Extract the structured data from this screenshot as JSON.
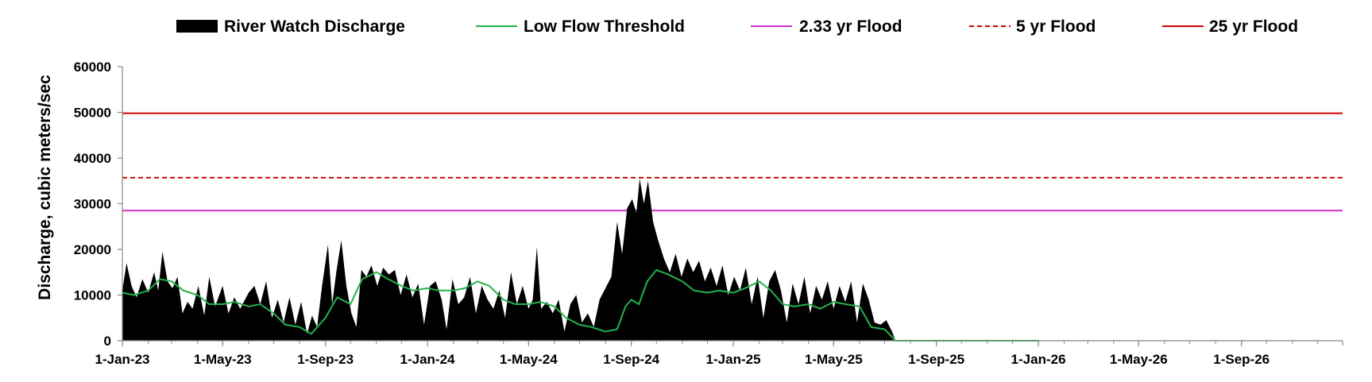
{
  "chart_data": {
    "type": "area",
    "ylabel": "Discharge, cubic meters/sec",
    "ylim": [
      0,
      60000
    ],
    "y_ticks": [
      "0",
      "10000",
      "20000",
      "30000",
      "40000",
      "50000",
      "60000"
    ],
    "x_range": [
      "2023-01-01",
      "2026-12-31"
    ],
    "x_ticks": [
      {
        "date": "2023-01-01",
        "label": "1-Jan-23"
      },
      {
        "date": "2023-05-01",
        "label": "1-May-23"
      },
      {
        "date": "2023-09-01",
        "label": "1-Sep-23"
      },
      {
        "date": "2024-01-01",
        "label": "1-Jan-24"
      },
      {
        "date": "2024-05-01",
        "label": "1-May-24"
      },
      {
        "date": "2024-09-01",
        "label": "1-Sep-24"
      },
      {
        "date": "2025-01-01",
        "label": "1-Jan-25"
      },
      {
        "date": "2025-05-01",
        "label": "1-May-25"
      },
      {
        "date": "2025-09-01",
        "label": "1-Sep-25"
      },
      {
        "date": "2026-01-01",
        "label": "1-Jan-26"
      },
      {
        "date": "2026-05-01",
        "label": "1-May-26"
      },
      {
        "date": "2026-09-01",
        "label": "1-Sep-26"
      }
    ],
    "legend_position": "top",
    "legend": [
      {
        "label": "River Watch Discharge",
        "style": "area",
        "color": "#000000"
      },
      {
        "label": "Low Flow Threshold",
        "style": "line",
        "color": "#22b14c"
      },
      {
        "label": "2.33 yr Flood",
        "style": "line",
        "color": "#cc33cc"
      },
      {
        "label": "5 yr Flood",
        "style": "dashed",
        "color": "#cc0000"
      },
      {
        "label": "25 yr Flood",
        "style": "line",
        "color": "#cc0000"
      }
    ],
    "thresholds": [
      {
        "name": "2.33 yr Flood",
        "value": 28500,
        "color": "#cc33cc",
        "dash": false
      },
      {
        "name": "5 yr Flood",
        "value": 35700,
        "color": "#cc0000",
        "dash": true
      },
      {
        "name": "25 yr Flood",
        "value": 49800,
        "color": "#cc0000",
        "dash": false
      }
    ],
    "series": [
      {
        "name": "River Watch Discharge",
        "color": "#000000",
        "points": [
          [
            "2023-01-01",
            11000
          ],
          [
            "2023-01-06",
            17000
          ],
          [
            "2023-01-12",
            12000
          ],
          [
            "2023-01-18",
            9500
          ],
          [
            "2023-01-25",
            13500
          ],
          [
            "2023-02-01",
            10500
          ],
          [
            "2023-02-08",
            15000
          ],
          [
            "2023-02-13",
            11000
          ],
          [
            "2023-02-18",
            19500
          ],
          [
            "2023-02-24",
            13000
          ],
          [
            "2023-03-02",
            11500
          ],
          [
            "2023-03-08",
            14000
          ],
          [
            "2023-03-14",
            6000
          ],
          [
            "2023-03-20",
            8500
          ],
          [
            "2023-03-26",
            7000
          ],
          [
            "2023-04-02",
            12000
          ],
          [
            "2023-04-09",
            5500
          ],
          [
            "2023-04-15",
            14000
          ],
          [
            "2023-04-22",
            7500
          ],
          [
            "2023-05-01",
            12000
          ],
          [
            "2023-05-08",
            6000
          ],
          [
            "2023-05-15",
            9500
          ],
          [
            "2023-05-22",
            7000
          ],
          [
            "2023-06-01",
            10500
          ],
          [
            "2023-06-08",
            12000
          ],
          [
            "2023-06-15",
            8000
          ],
          [
            "2023-06-22",
            13000
          ],
          [
            "2023-06-29",
            5000
          ],
          [
            "2023-07-06",
            9000
          ],
          [
            "2023-07-13",
            4000
          ],
          [
            "2023-07-20",
            9500
          ],
          [
            "2023-07-27",
            3500
          ],
          [
            "2023-08-03",
            8500
          ],
          [
            "2023-08-10",
            1500
          ],
          [
            "2023-08-16",
            5500
          ],
          [
            "2023-08-22",
            3000
          ],
          [
            "2023-08-28",
            12000
          ],
          [
            "2023-09-04",
            21000
          ],
          [
            "2023-09-09",
            8000
          ],
          [
            "2023-09-14",
            15000
          ],
          [
            "2023-09-20",
            22000
          ],
          [
            "2023-09-26",
            12000
          ],
          [
            "2023-10-02",
            6000
          ],
          [
            "2023-10-08",
            3000
          ],
          [
            "2023-10-14",
            15500
          ],
          [
            "2023-10-20",
            14000
          ],
          [
            "2023-10-26",
            16500
          ],
          [
            "2023-11-02",
            12000
          ],
          [
            "2023-11-09",
            16000
          ],
          [
            "2023-11-16",
            14500
          ],
          [
            "2023-11-23",
            15500
          ],
          [
            "2023-11-30",
            10000
          ],
          [
            "2023-12-07",
            14500
          ],
          [
            "2023-12-14",
            9500
          ],
          [
            "2023-12-21",
            12500
          ],
          [
            "2023-12-28",
            3500
          ],
          [
            "2024-01-04",
            12000
          ],
          [
            "2024-01-11",
            13000
          ],
          [
            "2024-01-18",
            9000
          ],
          [
            "2024-01-24",
            2500
          ],
          [
            "2024-01-31",
            13500
          ],
          [
            "2024-02-07",
            8000
          ],
          [
            "2024-02-14",
            9500
          ],
          [
            "2024-02-21",
            14000
          ],
          [
            "2024-02-28",
            6000
          ],
          [
            "2024-03-06",
            12000
          ],
          [
            "2024-03-13",
            9000
          ],
          [
            "2024-03-20",
            7000
          ],
          [
            "2024-03-27",
            11000
          ],
          [
            "2024-04-03",
            5000
          ],
          [
            "2024-04-10",
            15000
          ],
          [
            "2024-04-17",
            8000
          ],
          [
            "2024-04-24",
            12000
          ],
          [
            "2024-05-01",
            7000
          ],
          [
            "2024-05-06",
            9000
          ],
          [
            "2024-05-11",
            20500
          ],
          [
            "2024-05-16",
            7000
          ],
          [
            "2024-05-23",
            8500
          ],
          [
            "2024-05-30",
            6000
          ],
          [
            "2024-06-06",
            9000
          ],
          [
            "2024-06-13",
            2000
          ],
          [
            "2024-06-20",
            8000
          ],
          [
            "2024-06-27",
            10000
          ],
          [
            "2024-07-04",
            4000
          ],
          [
            "2024-07-11",
            6000
          ],
          [
            "2024-07-18",
            3000
          ],
          [
            "2024-07-25",
            9000
          ],
          [
            "2024-08-01",
            11500
          ],
          [
            "2024-08-08",
            14000
          ],
          [
            "2024-08-15",
            26000
          ],
          [
            "2024-08-21",
            19000
          ],
          [
            "2024-08-27",
            29000
          ],
          [
            "2024-09-02",
            31000
          ],
          [
            "2024-09-07",
            28000
          ],
          [
            "2024-09-11",
            35500
          ],
          [
            "2024-09-16",
            30000
          ],
          [
            "2024-09-21",
            35000
          ],
          [
            "2024-09-27",
            26000
          ],
          [
            "2024-10-03",
            22000
          ],
          [
            "2024-10-10",
            18000
          ],
          [
            "2024-10-17",
            15000
          ],
          [
            "2024-10-24",
            19000
          ],
          [
            "2024-10-31",
            14000
          ],
          [
            "2024-11-07",
            18000
          ],
          [
            "2024-11-14",
            15000
          ],
          [
            "2024-11-21",
            17500
          ],
          [
            "2024-11-28",
            13000
          ],
          [
            "2024-12-05",
            16000
          ],
          [
            "2024-12-12",
            12000
          ],
          [
            "2024-12-19",
            16500
          ],
          [
            "2024-12-26",
            10000
          ],
          [
            "2025-01-02",
            14000
          ],
          [
            "2025-01-09",
            11000
          ],
          [
            "2025-01-16",
            16000
          ],
          [
            "2025-01-23",
            8000
          ],
          [
            "2025-01-30",
            14000
          ],
          [
            "2025-02-06",
            5000
          ],
          [
            "2025-02-13",
            13000
          ],
          [
            "2025-02-20",
            15500
          ],
          [
            "2025-02-27",
            11000
          ],
          [
            "2025-03-06",
            4000
          ],
          [
            "2025-03-13",
            12500
          ],
          [
            "2025-03-20",
            8000
          ],
          [
            "2025-03-27",
            14000
          ],
          [
            "2025-04-03",
            6000
          ],
          [
            "2025-04-10",
            12000
          ],
          [
            "2025-04-17",
            9000
          ],
          [
            "2025-04-24",
            13000
          ],
          [
            "2025-05-01",
            7000
          ],
          [
            "2025-05-08",
            12000
          ],
          [
            "2025-05-15",
            8500
          ],
          [
            "2025-05-22",
            13000
          ],
          [
            "2025-05-29",
            4000
          ],
          [
            "2025-06-05",
            12500
          ],
          [
            "2025-06-12",
            9000
          ],
          [
            "2025-06-19",
            4000
          ],
          [
            "2025-06-26",
            3500
          ],
          [
            "2025-07-03",
            4500
          ],
          [
            "2025-07-10",
            2000
          ],
          [
            "2025-07-14",
            0
          ]
        ]
      },
      {
        "name": "Low Flow Threshold",
        "color": "#22b14c",
        "points": [
          [
            "2023-01-01",
            10500
          ],
          [
            "2023-01-15",
            10000
          ],
          [
            "2023-02-01",
            11000
          ],
          [
            "2023-02-15",
            13500
          ],
          [
            "2023-03-01",
            13000
          ],
          [
            "2023-03-15",
            11000
          ],
          [
            "2023-04-01",
            10000
          ],
          [
            "2023-04-15",
            8000
          ],
          [
            "2023-05-01",
            8000
          ],
          [
            "2023-05-15",
            8500
          ],
          [
            "2023-06-01",
            7500
          ],
          [
            "2023-06-15",
            8000
          ],
          [
            "2023-07-01",
            6000
          ],
          [
            "2023-07-15",
            3500
          ],
          [
            "2023-08-01",
            3000
          ],
          [
            "2023-08-15",
            1500
          ],
          [
            "2023-09-01",
            5000
          ],
          [
            "2023-09-15",
            9500
          ],
          [
            "2023-10-01",
            8000
          ],
          [
            "2023-10-15",
            13500
          ],
          [
            "2023-11-01",
            15000
          ],
          [
            "2023-11-15",
            13500
          ],
          [
            "2023-12-01",
            12000
          ],
          [
            "2023-12-15",
            11000
          ],
          [
            "2024-01-01",
            11500
          ],
          [
            "2024-01-15",
            11000
          ],
          [
            "2024-02-01",
            11000
          ],
          [
            "2024-02-15",
            11500
          ],
          [
            "2024-03-01",
            13000
          ],
          [
            "2024-03-15",
            12000
          ],
          [
            "2024-04-01",
            9000
          ],
          [
            "2024-04-15",
            8000
          ],
          [
            "2024-05-01",
            8000
          ],
          [
            "2024-05-15",
            8500
          ],
          [
            "2024-06-01",
            7500
          ],
          [
            "2024-06-15",
            5000
          ],
          [
            "2024-07-01",
            3500
          ],
          [
            "2024-07-15",
            3000
          ],
          [
            "2024-08-01",
            2000
          ],
          [
            "2024-08-15",
            2500
          ],
          [
            "2024-08-25",
            7500
          ],
          [
            "2024-09-01",
            9000
          ],
          [
            "2024-09-10",
            8000
          ],
          [
            "2024-09-20",
            13000
          ],
          [
            "2024-10-01",
            15500
          ],
          [
            "2024-10-15",
            14500
          ],
          [
            "2024-11-01",
            13000
          ],
          [
            "2024-11-15",
            11000
          ],
          [
            "2024-12-01",
            10500
          ],
          [
            "2024-12-15",
            11000
          ],
          [
            "2025-01-01",
            10500
          ],
          [
            "2025-01-15",
            11500
          ],
          [
            "2025-02-01",
            13000
          ],
          [
            "2025-02-15",
            11000
          ],
          [
            "2025-03-01",
            8000
          ],
          [
            "2025-03-15",
            7500
          ],
          [
            "2025-04-01",
            8000
          ],
          [
            "2025-04-15",
            7000
          ],
          [
            "2025-05-01",
            8500
          ],
          [
            "2025-05-15",
            8000
          ],
          [
            "2025-06-01",
            7500
          ],
          [
            "2025-06-15",
            3000
          ],
          [
            "2025-07-01",
            2500
          ],
          [
            "2025-07-14",
            0
          ],
          [
            "2026-01-01",
            0
          ]
        ]
      }
    ]
  }
}
